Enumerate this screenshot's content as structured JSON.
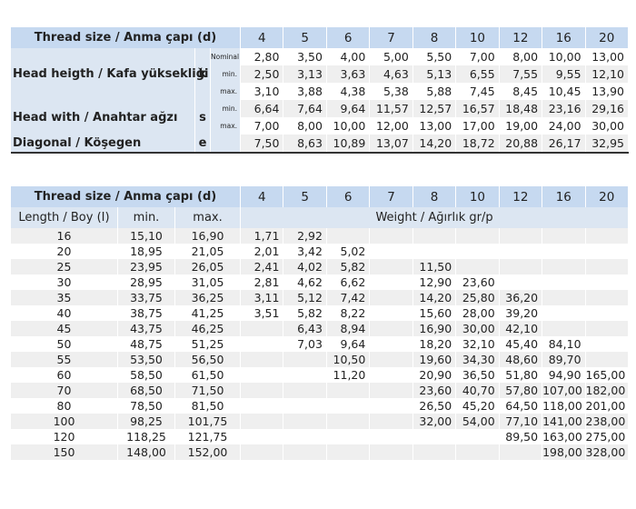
{
  "spec_table": {
    "header_label": "Thread size / Anma çapı (d)",
    "sizes": [
      "4",
      "5",
      "6",
      "7",
      "8",
      "10",
      "12",
      "16",
      "20"
    ],
    "groups": [
      {
        "label": "Head heigth / Kafa yüksekliği",
        "symbol": "k",
        "rows": [
          {
            "sub": "Nominal",
            "values": [
              "2,80",
              "3,50",
              "4,00",
              "5,00",
              "5,50",
              "7,00",
              "8,00",
              "10,00",
              "13,00"
            ]
          },
          {
            "sub": "min.",
            "values": [
              "2,50",
              "3,13",
              "3,63",
              "4,63",
              "5,13",
              "6,55",
              "7,55",
              "9,55",
              "12,10"
            ]
          },
          {
            "sub": "max.",
            "values": [
              "3,10",
              "3,88",
              "4,38",
              "5,38",
              "5,88",
              "7,45",
              "8,45",
              "10,45",
              "13,90"
            ]
          }
        ]
      },
      {
        "label": "Head with / Anahtar ağzı",
        "symbol": "s",
        "rows": [
          {
            "sub": "min.",
            "values": [
              "6,64",
              "7,64",
              "9,64",
              "11,57",
              "12,57",
              "16,57",
              "18,48",
              "23,16",
              "29,16"
            ]
          },
          {
            "sub": "max.",
            "values": [
              "7,00",
              "8,00",
              "10,00",
              "12,00",
              "13,00",
              "17,00",
              "19,00",
              "24,00",
              "30,00"
            ]
          }
        ]
      },
      {
        "label": "Diagonal / Köşegen",
        "symbol": "e",
        "rows": [
          {
            "values": [
              "7,50",
              "8,63",
              "10,89",
              "13,07",
              "14,20",
              "18,72",
              "20,88",
              "26,17",
              "32,95"
            ]
          }
        ]
      }
    ]
  },
  "weight_table": {
    "header_label": "Thread size / Anma çapı (d)",
    "sizes": [
      "4",
      "5",
      "6",
      "7",
      "8",
      "10",
      "12",
      "16",
      "20"
    ],
    "length_label": "Length / Boy (I)",
    "min_label": "min.",
    "max_label": "max.",
    "weight_label": "Weight / Ağırlık gr/p",
    "rows": [
      {
        "length": "16",
        "min": "15,10",
        "max": "16,90",
        "weights": [
          "1,71",
          "2,92",
          null,
          null,
          null,
          null,
          null,
          null,
          null
        ]
      },
      {
        "length": "20",
        "min": "18,95",
        "max": "21,05",
        "weights": [
          "2,01",
          "3,42",
          "5,02",
          null,
          null,
          null,
          null,
          null,
          null
        ]
      },
      {
        "length": "25",
        "min": "23,95",
        "max": "26,05",
        "weights": [
          "2,41",
          "4,02",
          "5,82",
          null,
          "11,50",
          null,
          null,
          null,
          null
        ]
      },
      {
        "length": "30",
        "min": "28,95",
        "max": "31,05",
        "weights": [
          "2,81",
          "4,62",
          "6,62",
          null,
          "12,90",
          "23,60",
          null,
          null,
          null
        ]
      },
      {
        "length": "35",
        "min": "33,75",
        "max": "36,25",
        "weights": [
          "3,11",
          "5,12",
          "7,42",
          null,
          "14,20",
          "25,80",
          "36,20",
          null,
          null
        ]
      },
      {
        "length": "40",
        "min": "38,75",
        "max": "41,25",
        "weights": [
          "3,51",
          "5,82",
          "8,22",
          null,
          "15,60",
          "28,00",
          "39,20",
          null,
          null
        ]
      },
      {
        "length": "45",
        "min": "43,75",
        "max": "46,25",
        "weights": [
          null,
          "6,43",
          "8,94",
          null,
          "16,90",
          "30,00",
          "42,10",
          null,
          null
        ]
      },
      {
        "length": "50",
        "min": "48,75",
        "max": "51,25",
        "weights": [
          null,
          "7,03",
          "9,64",
          null,
          "18,20",
          "32,10",
          "45,40",
          "84,10",
          null
        ]
      },
      {
        "length": "55",
        "min": "53,50",
        "max": "56,50",
        "weights": [
          null,
          null,
          "10,50",
          null,
          "19,60",
          "34,30",
          "48,60",
          "89,70",
          null
        ]
      },
      {
        "length": "60",
        "min": "58,50",
        "max": "61,50",
        "weights": [
          null,
          null,
          "11,20",
          null,
          "20,90",
          "36,50",
          "51,80",
          "94,90",
          "165,00"
        ]
      },
      {
        "length": "70",
        "min": "68,50",
        "max": "71,50",
        "weights": [
          null,
          null,
          null,
          null,
          "23,60",
          "40,70",
          "57,80",
          "107,00",
          "182,00"
        ]
      },
      {
        "length": "80",
        "min": "78,50",
        "max": "81,50",
        "weights": [
          null,
          null,
          null,
          null,
          "26,50",
          "45,20",
          "64,50",
          "118,00",
          "201,00"
        ]
      },
      {
        "length": "100",
        "min": "98,25",
        "max": "101,75",
        "weights": [
          null,
          null,
          null,
          null,
          "32,00",
          "54,00",
          "77,10",
          "141,00",
          "238,00"
        ]
      },
      {
        "length": "120",
        "min": "118,25",
        "max": "121,75",
        "weights": [
          null,
          null,
          null,
          null,
          null,
          null,
          "89,50",
          "163,00",
          "275,00"
        ]
      },
      {
        "length": "150",
        "min": "148,00",
        "max": "152,00",
        "weights": [
          null,
          null,
          null,
          null,
          null,
          null,
          null,
          "198,00",
          "328,00"
        ]
      }
    ]
  }
}
